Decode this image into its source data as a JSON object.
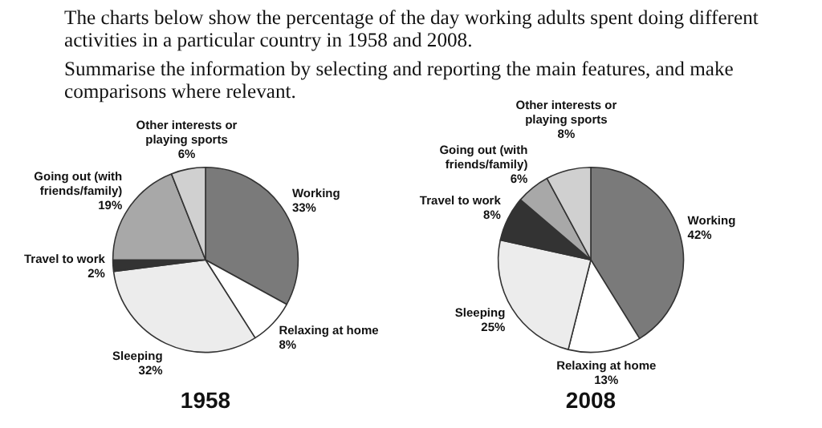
{
  "chart_data": [
    {
      "type": "pie",
      "title": "1958",
      "annotations": [
        "The charts below show the percentage of the day working adults spent doing different activities in a particular country in 1958 and 2008.",
        "Summarise the information by selecting and reporting the main features, and make comparisons where relevant."
      ],
      "categories": [
        "Working",
        "Relaxing at home",
        "Sleeping",
        "Travel to work",
        "Going out (with friends/family)",
        "Other interests or playing sports"
      ],
      "values": [
        33,
        8,
        32,
        2,
        19,
        6
      ],
      "value_labels": [
        "33%",
        "8%",
        "32%",
        "2%",
        "19%",
        "6%"
      ],
      "colors": [
        "#7a7a7a",
        "#ffffff",
        "#ececec",
        "#333333",
        "#a8a8a8",
        "#d0d0d0"
      ]
    },
    {
      "type": "pie",
      "title": "2008",
      "categories": [
        "Working",
        "Relaxing at home",
        "Sleeping",
        "Travel to work",
        "Going out (with friends/family)",
        "Other interests or playing sports"
      ],
      "values": [
        42,
        13,
        25,
        8,
        6,
        8
      ],
      "value_labels": [
        "42%",
        "13%",
        "25%",
        "8%",
        "6%",
        "8%"
      ],
      "colors": [
        "#7a7a7a",
        "#ffffff",
        "#ececec",
        "#333333",
        "#a8a8a8",
        "#d0d0d0"
      ]
    }
  ]
}
